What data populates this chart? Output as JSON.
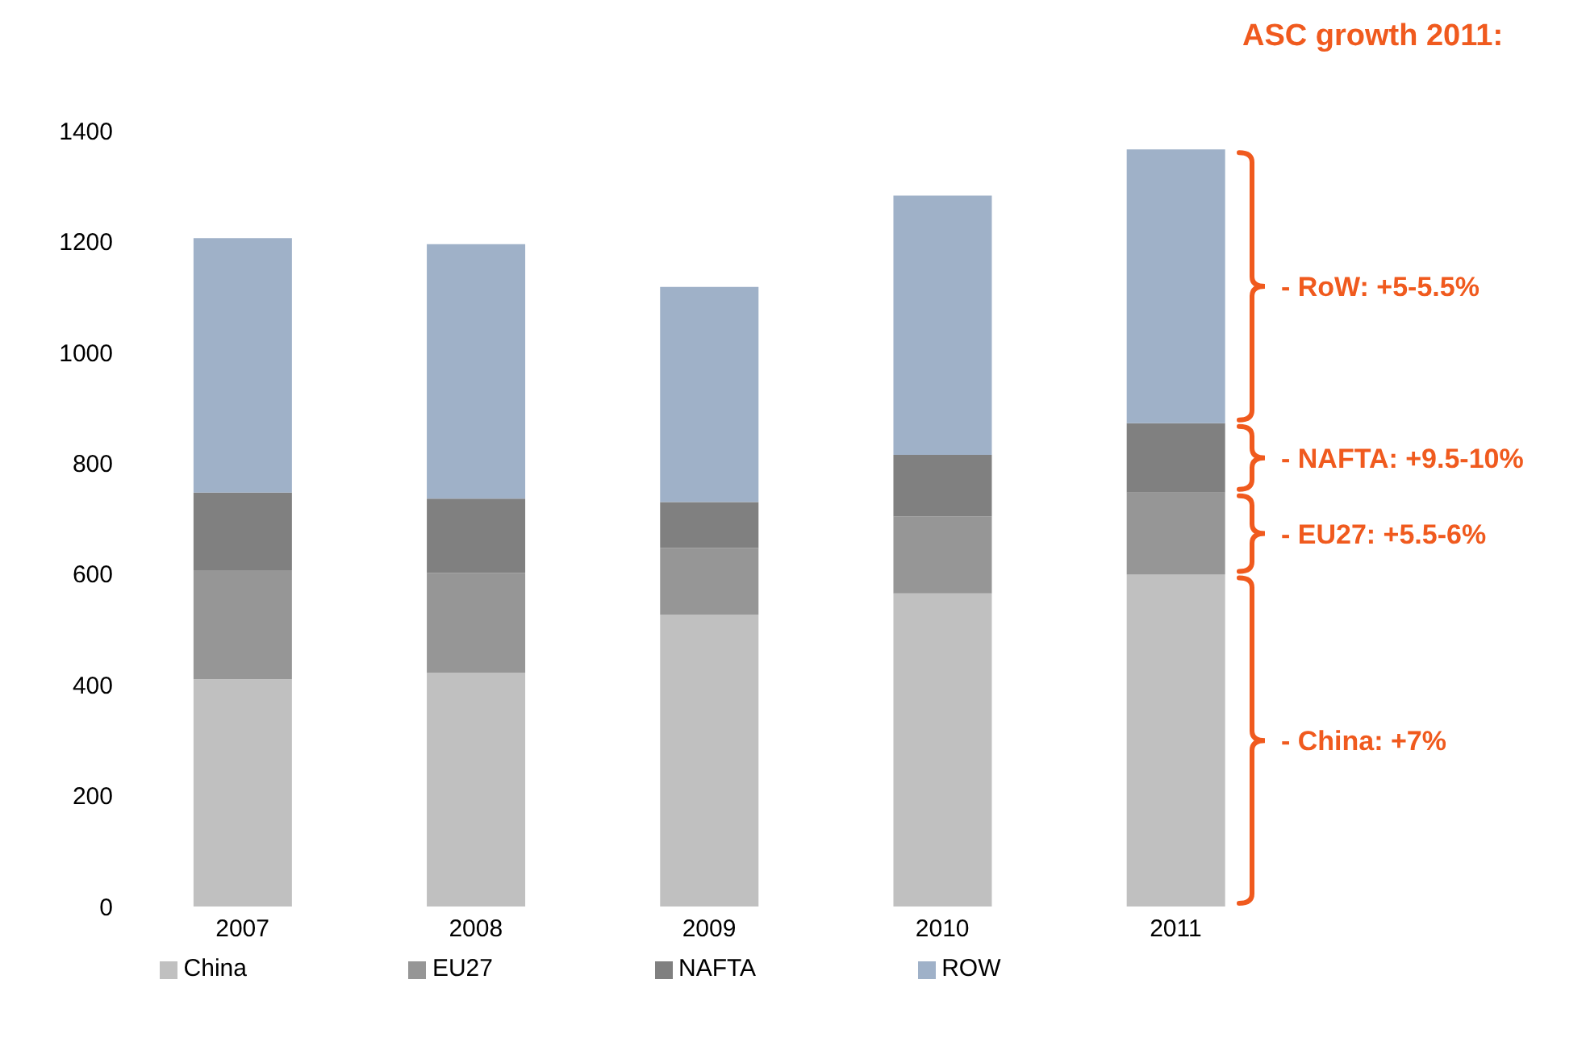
{
  "chart_data": {
    "type": "bar",
    "stacked": true,
    "title": "ASC growth 2011:",
    "categories": [
      "2007",
      "2008",
      "2009",
      "2010",
      "2011"
    ],
    "series": [
      {
        "name": "China",
        "color": "#c0c0c0",
        "values": [
          410,
          422,
          527,
          565,
          599
        ]
      },
      {
        "name": "EU27",
        "color": "#969696",
        "values": [
          197,
          180,
          120,
          139,
          148
        ]
      },
      {
        "name": "NAFTA",
        "color": "#808080",
        "values": [
          140,
          134,
          83,
          111,
          125
        ]
      },
      {
        "name": "ROW",
        "color": "#9fb1c8",
        "values": [
          459,
          459,
          388,
          468,
          494
        ]
      }
    ],
    "annotations": [
      "- China: +7%",
      "- EU27: +5.5-6%",
      "- NAFTA: +9.5-10%",
      "- RoW: +5-5.5%"
    ],
    "ylim": [
      0,
      1400
    ],
    "yticks": [
      0,
      200,
      400,
      600,
      800,
      1000,
      1200,
      1400
    ],
    "grid": false,
    "legend": "bottom"
  }
}
